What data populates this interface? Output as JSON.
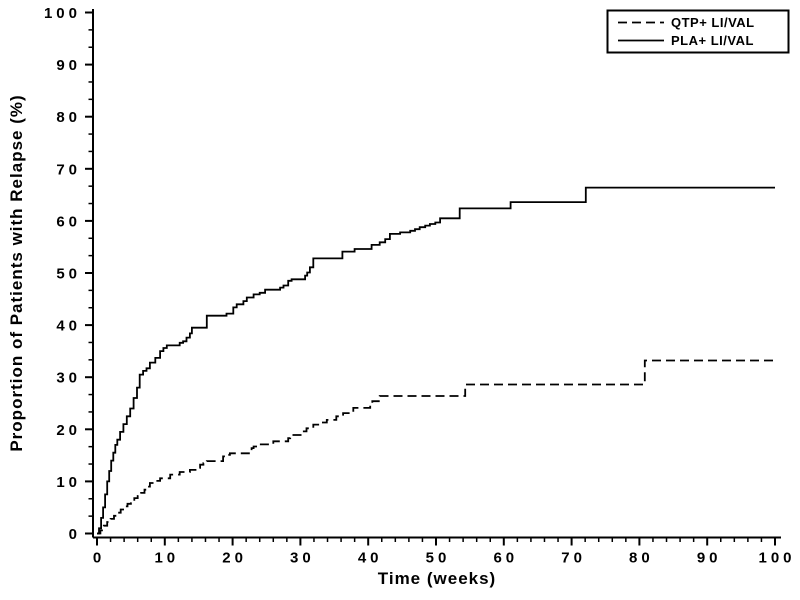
{
  "chart_data": {
    "type": "line",
    "subtype": "step-survival",
    "title": "",
    "xlabel": "Time (weeks)",
    "ylabel": "Proportion of Patients with Relapse (%)",
    "xlim": [
      0,
      100
    ],
    "ylim": [
      0,
      100
    ],
    "x_ticks": [
      0,
      10,
      20,
      30,
      40,
      50,
      60,
      70,
      80,
      90,
      100
    ],
    "y_ticks": [
      0,
      10,
      20,
      30,
      40,
      50,
      60,
      70,
      80,
      90,
      100
    ],
    "x_minor_step": 2,
    "y_minor_divisions": 3,
    "grid": false,
    "legend_position": "top-right",
    "line_color": "#000000",
    "background_color": "#ffffff",
    "series": [
      {
        "name": "QTP+ LI/VAL",
        "style": "dashed",
        "color": "#000000",
        "points": [
          [
            0,
            0
          ],
          [
            0.5,
            0.6
          ],
          [
            1,
            1.5
          ],
          [
            1.5,
            2.2
          ],
          [
            2,
            2.8
          ],
          [
            2.5,
            3.4
          ],
          [
            3,
            4
          ],
          [
            3.5,
            4.6
          ],
          [
            4,
            5.2
          ],
          [
            4.5,
            5.7
          ],
          [
            5,
            6.2
          ],
          [
            5.5,
            6.8
          ],
          [
            6,
            7.2
          ],
          [
            6.5,
            7.8
          ],
          [
            7,
            8.4
          ],
          [
            7.5,
            9
          ],
          [
            7.8,
            9.7
          ],
          [
            8.5,
            10.1
          ],
          [
            9.3,
            10.6
          ],
          [
            10.8,
            11.3
          ],
          [
            12.2,
            11.8
          ],
          [
            13.7,
            12.2
          ],
          [
            14.7,
            12.6
          ],
          [
            15.2,
            13.2
          ],
          [
            15.7,
            13.5
          ],
          [
            16.2,
            13.9
          ],
          [
            18.6,
            14.8
          ],
          [
            19.1,
            15.1
          ],
          [
            19.6,
            15.4
          ],
          [
            22.8,
            16.4
          ],
          [
            23.1,
            16.7
          ],
          [
            24,
            17.1
          ],
          [
            26,
            17.7
          ],
          [
            28.2,
            18.3
          ],
          [
            28.5,
            18.9
          ],
          [
            30.2,
            19.6
          ],
          [
            30.9,
            20.2
          ],
          [
            31.9,
            20.9
          ],
          [
            32.9,
            21.3
          ],
          [
            33.9,
            21.8
          ],
          [
            35.3,
            22.5
          ],
          [
            36.3,
            23.1
          ],
          [
            37.8,
            24.1
          ],
          [
            40.3,
            24.8
          ],
          [
            40.6,
            25.4
          ],
          [
            41.7,
            26.4
          ],
          [
            54.3,
            28.6
          ],
          [
            80.8,
            33.2
          ],
          [
            100,
            33.2
          ]
        ]
      },
      {
        "name": "PLA+ LI/VAL",
        "style": "solid",
        "color": "#000000",
        "points": [
          [
            0,
            0
          ],
          [
            0.3,
            1
          ],
          [
            0.6,
            3
          ],
          [
            0.9,
            5
          ],
          [
            1.2,
            7.5
          ],
          [
            1.5,
            10
          ],
          [
            1.8,
            12
          ],
          [
            2.1,
            14
          ],
          [
            2.4,
            15.5
          ],
          [
            2.7,
            17
          ],
          [
            3,
            18
          ],
          [
            3.4,
            19.5
          ],
          [
            3.9,
            21
          ],
          [
            4.4,
            22.5
          ],
          [
            4.9,
            24
          ],
          [
            5.4,
            26
          ],
          [
            5.9,
            28
          ],
          [
            6.3,
            30.5
          ],
          [
            6.8,
            31.2
          ],
          [
            7.3,
            31.7
          ],
          [
            7.8,
            32.8
          ],
          [
            8.6,
            33.7
          ],
          [
            9.3,
            35
          ],
          [
            9.8,
            35.6
          ],
          [
            10.3,
            36.1
          ],
          [
            12.2,
            36.6
          ],
          [
            12.7,
            36.9
          ],
          [
            13.2,
            37.6
          ],
          [
            13.7,
            38.4
          ],
          [
            14,
            39.5
          ],
          [
            16.2,
            41.8
          ],
          [
            19.1,
            42.2
          ],
          [
            20.1,
            43.4
          ],
          [
            20.6,
            44
          ],
          [
            21.6,
            44.6
          ],
          [
            22.1,
            45.3
          ],
          [
            23.1,
            45.9
          ],
          [
            24,
            46.2
          ],
          [
            24.8,
            46.8
          ],
          [
            27,
            47.2
          ],
          [
            27.5,
            47.6
          ],
          [
            28.2,
            48.5
          ],
          [
            28.7,
            48.8
          ],
          [
            30.7,
            49.5
          ],
          [
            31,
            50.1
          ],
          [
            31.4,
            51.1
          ],
          [
            31.9,
            52.8
          ],
          [
            36.2,
            54.1
          ],
          [
            38,
            54.6
          ],
          [
            40.5,
            55.4
          ],
          [
            41.7,
            55.9
          ],
          [
            42.5,
            56.5
          ],
          [
            43.2,
            57.5
          ],
          [
            44.7,
            57.8
          ],
          [
            46.2,
            58.1
          ],
          [
            46.9,
            58.4
          ],
          [
            47.6,
            58.8
          ],
          [
            48.4,
            59.1
          ],
          [
            49.1,
            59.4
          ],
          [
            49.9,
            59.7
          ],
          [
            50.6,
            60.5
          ],
          [
            53.5,
            62.4
          ],
          [
            61,
            63.6
          ],
          [
            72.1,
            66.4
          ],
          [
            100,
            66.4
          ]
        ]
      }
    ]
  }
}
